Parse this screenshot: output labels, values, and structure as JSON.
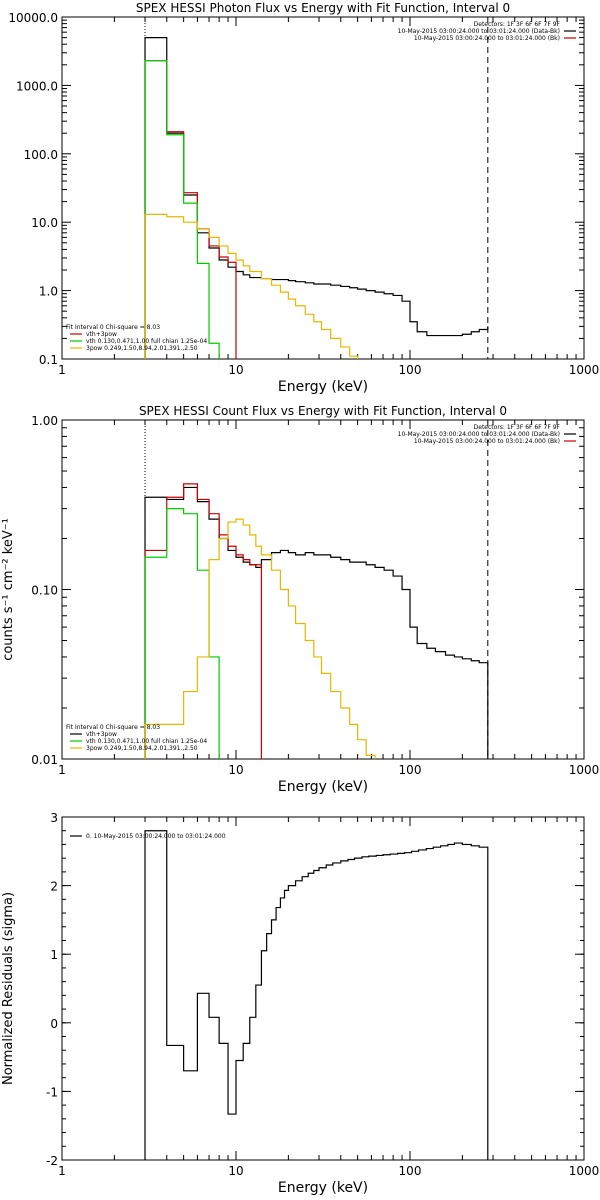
{
  "chart_data": [
    {
      "type": "line",
      "step": true,
      "title": "SPEX HESSI Photon Flux vs Energy with Fit Function, Interval 0",
      "xlabel": "Energy (keV)",
      "ylabel": "",
      "xscale": "log",
      "yscale": "log",
      "xlim": [
        1,
        1000
      ],
      "ylim": [
        0.1,
        10000
      ],
      "xticks": [
        1,
        10,
        100,
        1000
      ],
      "xtick_labels": [
        "1",
        "10",
        "100",
        "1000"
      ],
      "yticks": [
        0.1,
        1,
        10,
        100,
        1000,
        10000
      ],
      "ytick_labels": [
        "0.1",
        "1.0",
        "10.0",
        "100.0",
        "1000.0",
        "10000.0"
      ],
      "vlines": [
        {
          "x": 3,
          "style": "dotted",
          "color": "#000000"
        },
        {
          "x": 280,
          "style": "dashed",
          "color": "#000000"
        }
      ],
      "header_legend": {
        "lines": [
          {
            "text": "Detectors: 1F 3F 6F 6F 7F 9F",
            "color": ""
          },
          {
            "text": "10-May-2015 03:00:24.000 to 03:01:24.000 (Data-Bk)",
            "color": "#000000"
          },
          {
            "text": "10-May-2015 03:00:24.000 to 03:01:24.000 (Bk)",
            "color": "#cc0000"
          }
        ]
      },
      "legend": {
        "lines": [
          {
            "text": "Fit Interval 0    Chi-square = 8.03",
            "color": ""
          },
          {
            "text": "vth+3pow",
            "color": "#cc0000"
          },
          {
            "text": "vth 0.130,0.471,1.00  full chian 1.25e-04",
            "color": "#00cc00"
          },
          {
            "text": "3pow 0.249,1.50,8.94,2.01,391.,2.50",
            "color": "#e6b800"
          }
        ]
      },
      "series": [
        {
          "color": "#000000",
          "edges": [
            3,
            4,
            5,
            6,
            7,
            8,
            9,
            10,
            11,
            12,
            14,
            16,
            18,
            20,
            22,
            25,
            28,
            31,
            35,
            40,
            45,
            50,
            56,
            63,
            71,
            80,
            90,
            100,
            110,
            125,
            140,
            160,
            180,
            200,
            225,
            250,
            280
          ],
          "values": [
            5000,
            200,
            25,
            7,
            4.2,
            2.8,
            2.2,
            1.9,
            1.7,
            1.55,
            1.5,
            1.45,
            1.45,
            1.4,
            1.35,
            1.3,
            1.25,
            1.25,
            1.2,
            1.15,
            1.1,
            1.05,
            1.0,
            0.95,
            0.9,
            0.85,
            0.7,
            0.35,
            0.25,
            0.22,
            0.22,
            0.22,
            0.22,
            0.23,
            0.25,
            0.27,
            0.3
          ]
        },
        {
          "color": "#cc0000",
          "edges": [
            3,
            4,
            5,
            6,
            7,
            8,
            9,
            10
          ],
          "values": [
            2300,
            210,
            27,
            8,
            4.5,
            3.1,
            2.6
          ]
        },
        {
          "color": "#00cc00",
          "edges": [
            3,
            4,
            5,
            6,
            7,
            8
          ],
          "values": [
            2300,
            190,
            19,
            2.5,
            0.17
          ]
        },
        {
          "color": "#e6b800",
          "edges": [
            3,
            4,
            5,
            6,
            7,
            8,
            9,
            10,
            11,
            12,
            14,
            16,
            18,
            20,
            22,
            25,
            28,
            31,
            35,
            40,
            45,
            50
          ],
          "values": [
            13,
            12,
            10,
            8,
            6,
            4.5,
            3.5,
            2.8,
            2.3,
            1.9,
            1.5,
            1.2,
            0.95,
            0.75,
            0.6,
            0.45,
            0.35,
            0.27,
            0.2,
            0.15,
            0.11
          ]
        }
      ]
    },
    {
      "type": "line",
      "step": true,
      "title": "SPEX HESSI Count Flux vs Energy with Fit Function, Interval 0",
      "xlabel": "Energy (keV)",
      "ylabel": "counts s⁻¹ cm⁻² keV⁻¹",
      "xscale": "log",
      "yscale": "log",
      "xlim": [
        1,
        1000
      ],
      "ylim": [
        0.01,
        1
      ],
      "xticks": [
        1,
        10,
        100,
        1000
      ],
      "xtick_labels": [
        "1",
        "10",
        "100",
        "1000"
      ],
      "yticks": [
        0.01,
        0.1,
        1
      ],
      "ytick_labels": [
        "0.01",
        "0.10",
        "1.00"
      ],
      "vlines": [
        {
          "x": 3,
          "style": "dotted",
          "color": "#000000"
        },
        {
          "x": 280,
          "style": "dashed",
          "color": "#000000"
        }
      ],
      "header_legend": {
        "lines": [
          {
            "text": "Detectors: 1F 3F 6F 6F 7F 9F",
            "color": ""
          },
          {
            "text": "10-May-2015 03:00:24.000 to 03:01:24.000 (Data-Bk)",
            "color": "#000000"
          },
          {
            "text": "10-May-2015 03:00:24.000 to 03:01:24.000 (Bk)",
            "color": "#cc0000"
          }
        ]
      },
      "legend": {
        "lines": [
          {
            "text": "Fit Interval 0    Chi-square = 8.03",
            "color": ""
          },
          {
            "text": "vth+3pow",
            "color": "#000000"
          },
          {
            "text": "vth 0.130,0.471,1.00  full chian 1.25e-04",
            "color": "#00cc00"
          },
          {
            "text": "3pow 0.249,1.50,8.94,2.01,391.,2.50",
            "color": "#e6b800"
          }
        ]
      },
      "series": [
        {
          "color": "#000000",
          "edges": [
            3,
            4,
            5,
            6,
            7,
            8,
            9,
            10,
            11,
            12,
            13,
            14,
            16,
            18,
            20,
            22,
            25,
            28,
            31,
            35,
            40,
            45,
            50,
            56,
            63,
            71,
            80,
            90,
            100,
            110,
            125,
            140,
            160,
            180,
            200,
            225,
            250,
            280
          ],
          "values": [
            0.35,
            0.34,
            0.4,
            0.33,
            0.26,
            0.2,
            0.17,
            0.155,
            0.145,
            0.14,
            0.135,
            0.15,
            0.165,
            0.17,
            0.165,
            0.16,
            0.165,
            0.16,
            0.16,
            0.155,
            0.15,
            0.145,
            0.145,
            0.14,
            0.135,
            0.13,
            0.12,
            0.1,
            0.06,
            0.048,
            0.045,
            0.043,
            0.041,
            0.04,
            0.039,
            0.038,
            0.037
          ]
        },
        {
          "color": "#cc0000",
          "edges": [
            3,
            4,
            5,
            6,
            7,
            8,
            9,
            10,
            11,
            12,
            13,
            14
          ],
          "values": [
            0.17,
            0.35,
            0.42,
            0.34,
            0.28,
            0.21,
            0.18,
            0.16,
            0.15,
            0.14,
            0.14
          ]
        },
        {
          "color": "#00cc00",
          "edges": [
            3,
            4,
            5,
            6,
            7,
            8
          ],
          "values": [
            0.155,
            0.3,
            0.28,
            0.13,
            0.04
          ]
        },
        {
          "color": "#e6b800",
          "edges": [
            3,
            4,
            5,
            6,
            7,
            8,
            9,
            10,
            11,
            12,
            13,
            14,
            16,
            18,
            20,
            22,
            25,
            28,
            31,
            35,
            40,
            45,
            50,
            56,
            63
          ],
          "values": [
            0.016,
            0.016,
            0.025,
            0.04,
            0.15,
            0.2,
            0.25,
            0.26,
            0.24,
            0.21,
            0.18,
            0.16,
            0.13,
            0.1,
            0.08,
            0.063,
            0.05,
            0.04,
            0.032,
            0.025,
            0.02,
            0.016,
            0.013,
            0.0105
          ]
        }
      ]
    },
    {
      "type": "line",
      "step": true,
      "title": "",
      "xlabel": "Energy (keV)",
      "ylabel": "Normalized Residuals (sigma)",
      "xscale": "log",
      "yscale": "linear",
      "xlim": [
        1,
        1000
      ],
      "ylim": [
        -2,
        3
      ],
      "xticks": [
        1,
        10,
        100,
        1000
      ],
      "xtick_labels": [
        "1",
        "10",
        "100",
        "1000"
      ],
      "yticks": [
        -2,
        -1,
        0,
        1,
        2,
        3
      ],
      "ytick_labels": [
        "-2",
        "-1",
        "0",
        "1",
        "2",
        "3"
      ],
      "vlines": [],
      "legend": {
        "lines": [
          {
            "text": "0. 10-May-2015 03:00:24.000 to 03:01:24.000",
            "color": "#000000"
          }
        ]
      },
      "series": [
        {
          "color": "#000000",
          "baseline": -2,
          "edges": [
            3,
            4,
            5,
            6,
            7,
            8,
            9,
            10,
            11,
            12,
            13,
            14,
            15,
            16,
            17,
            18,
            19,
            20,
            22,
            24,
            26,
            28,
            30,
            33,
            36,
            40,
            44,
            48,
            53,
            58,
            64,
            70,
            77,
            85,
            93,
            102,
            112,
            124,
            136,
            150,
            165,
            180,
            200,
            225,
            250,
            280
          ],
          "values": [
            2.8,
            -0.33,
            -0.7,
            0.43,
            0.08,
            -0.3,
            -1.33,
            -0.55,
            -0.3,
            0.08,
            0.55,
            1.05,
            1.3,
            1.5,
            1.68,
            1.82,
            1.93,
            2.0,
            2.07,
            2.13,
            2.18,
            2.22,
            2.26,
            2.3,
            2.33,
            2.36,
            2.38,
            2.4,
            2.42,
            2.43,
            2.44,
            2.45,
            2.46,
            2.47,
            2.48,
            2.5,
            2.52,
            2.54,
            2.56,
            2.58,
            2.6,
            2.62,
            2.6,
            2.58,
            2.56
          ]
        }
      ]
    }
  ]
}
